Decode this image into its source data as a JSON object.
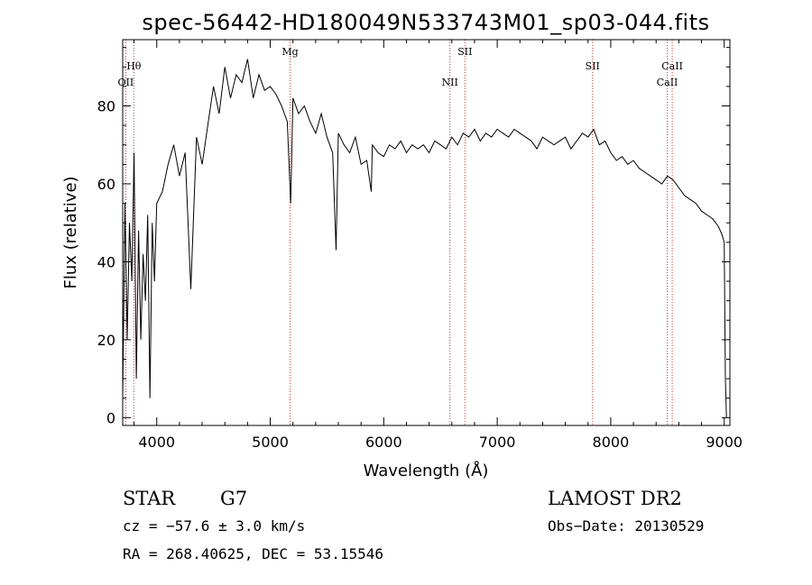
{
  "chart_data": {
    "type": "line",
    "title": "spec-56442-HD180049N533743M01_sp03-044.fits",
    "xlabel": "Wavelength (Å)",
    "ylabel": "Flux (relative)",
    "xlim": [
      3700,
      9050
    ],
    "ylim": [
      -2,
      97
    ],
    "xticks": [
      4000,
      5000,
      6000,
      7000,
      8000,
      9000
    ],
    "yticks": [
      0,
      20,
      40,
      60,
      80
    ],
    "grid": false,
    "series": [
      {
        "color": "#000000",
        "x": [
          3700,
          3720,
          3740,
          3760,
          3780,
          3800,
          3820,
          3840,
          3860,
          3880,
          3900,
          3920,
          3940,
          3960,
          3980,
          4000,
          4050,
          4100,
          4150,
          4200,
          4250,
          4300,
          4350,
          4400,
          4450,
          4500,
          4550,
          4600,
          4650,
          4700,
          4750,
          4800,
          4850,
          4900,
          4950,
          5000,
          5050,
          5100,
          5150,
          5180,
          5200,
          5250,
          5300,
          5350,
          5400,
          5450,
          5500,
          5550,
          5580,
          5600,
          5650,
          5700,
          5750,
          5800,
          5850,
          5890,
          5900,
          5950,
          6000,
          6050,
          6100,
          6150,
          6200,
          6250,
          6300,
          6350,
          6400,
          6450,
          6500,
          6550,
          6600,
          6650,
          6700,
          6750,
          6800,
          6850,
          6900,
          6950,
          7000,
          7050,
          7100,
          7150,
          7200,
          7250,
          7300,
          7350,
          7400,
          7450,
          7500,
          7550,
          7600,
          7650,
          7700,
          7750,
          7800,
          7850,
          7900,
          7950,
          8000,
          8050,
          8100,
          8150,
          8200,
          8250,
          8300,
          8350,
          8400,
          8450,
          8500,
          8550,
          8600,
          8650,
          8700,
          8750,
          8800,
          8850,
          8900,
          8950,
          8980,
          9000,
          9010,
          9020
        ],
        "y": [
          5,
          55,
          20,
          50,
          35,
          68,
          10,
          48,
          20,
          42,
          30,
          52,
          5,
          50,
          35,
          55,
          58,
          65,
          70,
          62,
          68,
          33,
          72,
          65,
          75,
          85,
          78,
          90,
          82,
          88,
          86,
          92,
          82,
          88,
          84,
          85,
          83,
          80,
          76,
          55,
          82,
          78,
          80,
          76,
          73,
          78,
          72,
          68,
          43,
          73,
          70,
          68,
          72,
          65,
          66,
          58,
          70,
          68,
          67,
          70,
          69,
          71,
          68,
          70,
          69,
          70,
          68,
          71,
          70,
          69,
          72,
          70,
          73,
          72,
          74,
          71,
          73,
          72,
          74,
          73,
          72,
          74,
          73,
          72,
          71,
          69,
          72,
          71,
          70,
          71,
          72,
          69,
          71,
          73,
          72,
          74,
          70,
          71,
          68,
          66,
          67,
          65,
          66,
          64,
          63,
          62,
          61,
          60,
          62,
          61,
          59,
          57,
          56,
          55,
          53,
          52,
          51,
          49,
          47,
          45,
          10,
          0
        ]
      }
    ],
    "lines": [
      {
        "label": "Hθ",
        "x": 3798,
        "row": 1
      },
      {
        "label": "OII",
        "x": 3727,
        "row": 2
      },
      {
        "label": "Mg",
        "x": 5175,
        "row": 0
      },
      {
        "label": "NII",
        "x": 6583,
        "row": 2
      },
      {
        "label": "SII",
        "x": 6716,
        "row": 0
      },
      {
        "label": "SII",
        "x": 7840,
        "row": 1
      },
      {
        "label": "CaII",
        "x": 8542,
        "row": 1
      },
      {
        "label": "CaII",
        "x": 8498,
        "row": 2
      }
    ],
    "line_color": "#cc3333"
  },
  "info": {
    "object_type": "STAR",
    "subclass": "G7",
    "cz": "cz = −57.6 ± 3.0 km/s",
    "coords": "RA = 268.40625, DEC =  53.15546",
    "survey": "LAMOST DR2",
    "obs_date": "Obs−Date: 20130529"
  }
}
